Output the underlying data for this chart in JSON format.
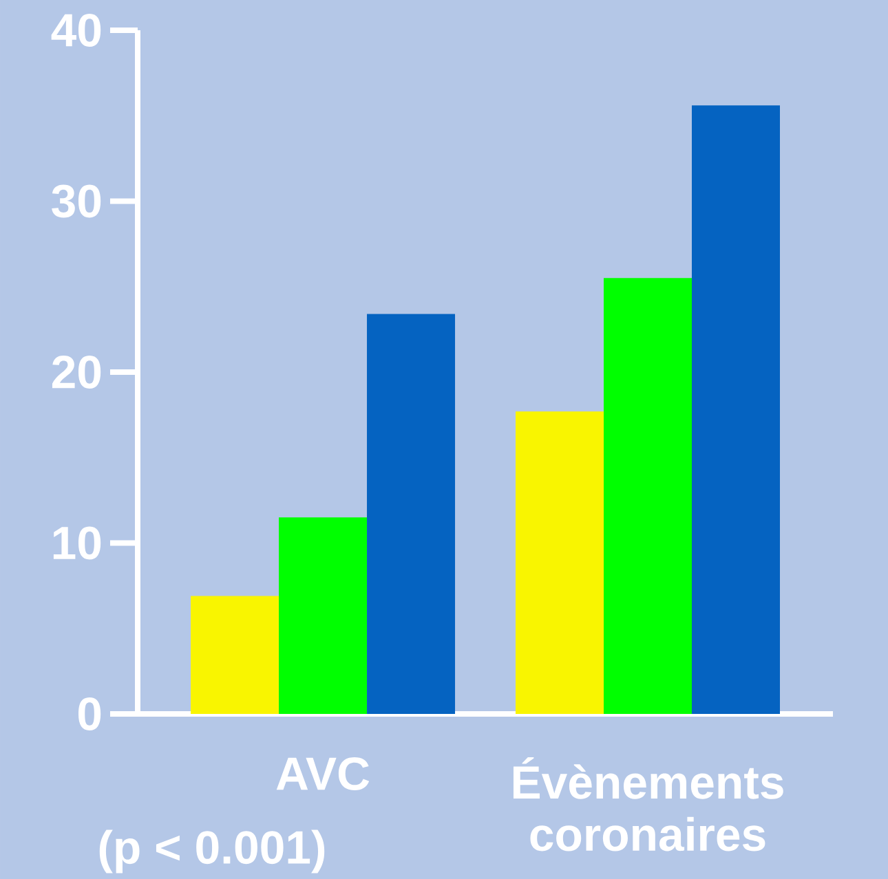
{
  "chart_data": {
    "type": "bar",
    "categories": [
      "AVC",
      "Évènements coronaires"
    ],
    "series": [
      {
        "color": "#f9f500",
        "values": [
          6.9,
          17.7
        ]
      },
      {
        "color": "#00ff00",
        "values": [
          11.5,
          25.5
        ]
      },
      {
        "color": "#0563c1",
        "values": [
          23.4,
          35.6
        ]
      }
    ],
    "ylim": [
      0,
      40
    ],
    "yticks": [
      0,
      10,
      20,
      30,
      40
    ],
    "annotations": [
      "(p < 0.001)"
    ]
  }
}
